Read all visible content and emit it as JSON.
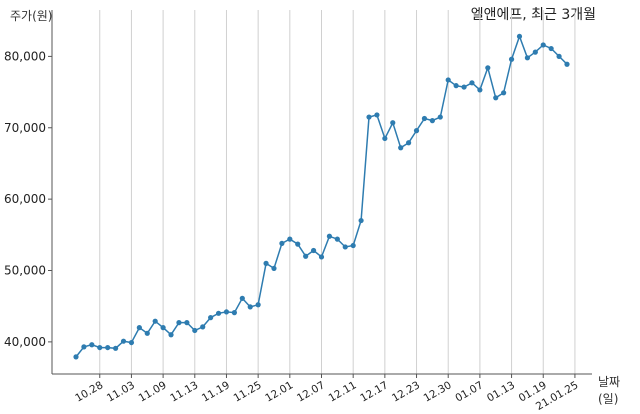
{
  "chart_data": {
    "type": "line",
    "title": "엘앤에프, 최근 3개월",
    "xlabel": "날짜(일)",
    "ylabel": "주가(원)",
    "ylim": [
      35500,
      86500
    ],
    "yticks": [
      "40,000",
      "50,000",
      "60,000",
      "70,000",
      "80,000"
    ],
    "ytick_values": [
      40000,
      50000,
      60000,
      70000,
      80000
    ],
    "xtick_labels": [
      "10.28",
      "11.03",
      "11.09",
      "11.13",
      "11.19",
      "11.25",
      "12.01",
      "12.07",
      "12.11",
      "12.17",
      "12.23",
      "12.30",
      "01.07",
      "01.13",
      "01.19",
      "21.01.25"
    ],
    "xtick_indices": [
      3,
      7,
      11,
      15,
      19,
      23,
      27,
      31,
      35,
      39,
      43,
      47,
      51,
      55,
      59,
      63
    ],
    "grid": "vertical",
    "color": "#2e7cb0",
    "series": [
      {
        "values": [
          37900,
          39300,
          39600,
          39200,
          39200,
          39100,
          40100,
          39900,
          42000,
          41200,
          42900,
          42000,
          41000,
          42700,
          42700,
          41600,
          42100,
          43400,
          44000,
          44200,
          44100,
          46100,
          44900,
          45200,
          51000,
          50300,
          53800,
          54400,
          53700,
          52000,
          52800,
          51900,
          54800,
          54400,
          53300,
          53500,
          57000,
          71500,
          71800,
          68500,
          70700,
          67200,
          67900,
          69600,
          71300,
          71000,
          71500,
          76700,
          75900,
          75700,
          76300,
          75300,
          78400,
          74200,
          74900,
          79600,
          82800,
          79800,
          80600,
          81600,
          81100,
          80000,
          78900
        ]
      }
    ]
  }
}
